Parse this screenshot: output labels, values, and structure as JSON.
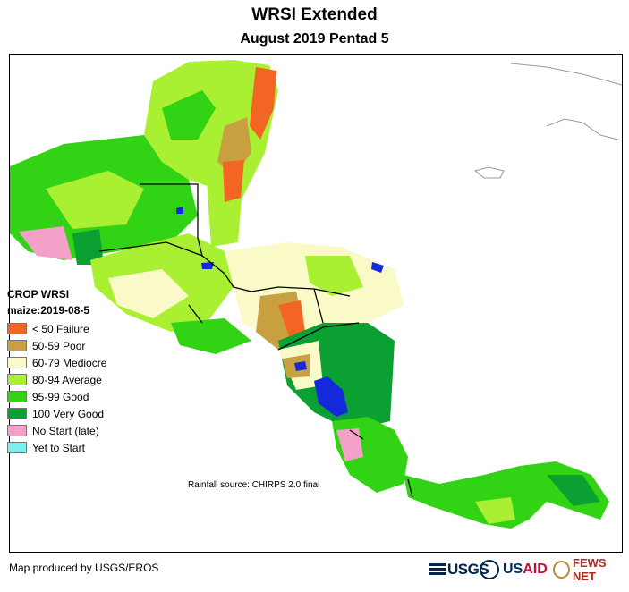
{
  "header": {
    "title": "WRSI Extended",
    "subtitle": "August 2019 Pentad 5"
  },
  "legend": {
    "title": "CROP WRSI",
    "subtitle": "maize:2019-08-5",
    "items": [
      {
        "label": "< 50  Failure",
        "color": "#f26522"
      },
      {
        "label": "50-59 Poor",
        "color": "#c8a040"
      },
      {
        "label": "60-79 Mediocre",
        "color": "#fafac8"
      },
      {
        "label": "80-94 Average",
        "color": "#aaf032"
      },
      {
        "label": "95-99 Good",
        "color": "#32d214"
      },
      {
        "label": "100 Very Good",
        "color": "#0aa032"
      },
      {
        "label": "No Start (late)",
        "color": "#f5a0c8"
      },
      {
        "label": "Yet to Start",
        "color": "#78f0f0"
      }
    ]
  },
  "map": {
    "source": "Rainfall source: CHIRPS 2.0 final",
    "water_color": "#1428dc"
  },
  "footer": {
    "credit": "Map produced by USGS/EROS",
    "logos": {
      "usgs": "USGS",
      "usaid_a": "US",
      "usaid_b": "AID",
      "fews": "FEWS NET"
    }
  }
}
